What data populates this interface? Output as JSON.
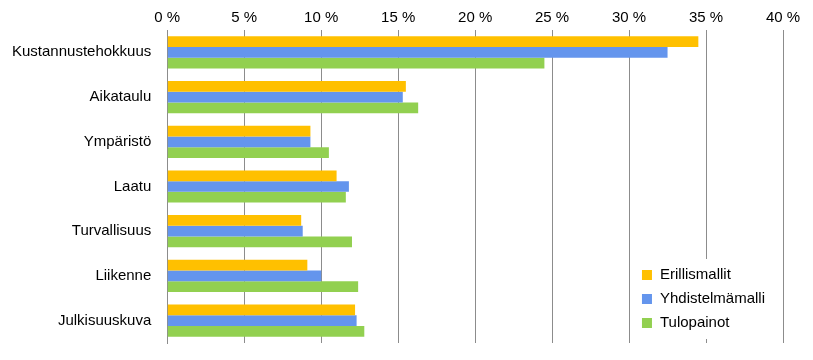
{
  "chart_data": {
    "type": "bar",
    "orientation": "horizontal",
    "categories": [
      "Kustannustehokkuus",
      "Aikataulu",
      "Ympäristö",
      "Laatu",
      "Turvallisuus",
      "Liikenne",
      "Julkisuuskuva"
    ],
    "series": [
      {
        "name": "Erillismallit",
        "color": "#ffc000",
        "values": [
          34.5,
          15.5,
          9.3,
          11.0,
          8.7,
          9.1,
          12.2
        ]
      },
      {
        "name": "Yhdistelmämalli",
        "color": "#6495ed",
        "values": [
          32.5,
          15.3,
          9.3,
          11.8,
          8.8,
          10.0,
          12.3
        ]
      },
      {
        "name": "Tulopainot",
        "color": "#92d050",
        "values": [
          24.5,
          16.3,
          10.5,
          11.6,
          12.0,
          12.4,
          12.8
        ]
      }
    ],
    "xlim": [
      0,
      40
    ],
    "xticks": [
      {
        "value": 0,
        "label": "0 %"
      },
      {
        "value": 5,
        "label": "5 %"
      },
      {
        "value": 10,
        "label": "10 %"
      },
      {
        "value": 15,
        "label": "15 %"
      },
      {
        "value": 20,
        "label": "20 %"
      },
      {
        "value": 25,
        "label": "25 %"
      },
      {
        "value": 30,
        "label": "30 %"
      },
      {
        "value": 35,
        "label": "35 %"
      },
      {
        "value": 40,
        "label": "40 %"
      }
    ],
    "grid": true,
    "legend": "lower right"
  }
}
